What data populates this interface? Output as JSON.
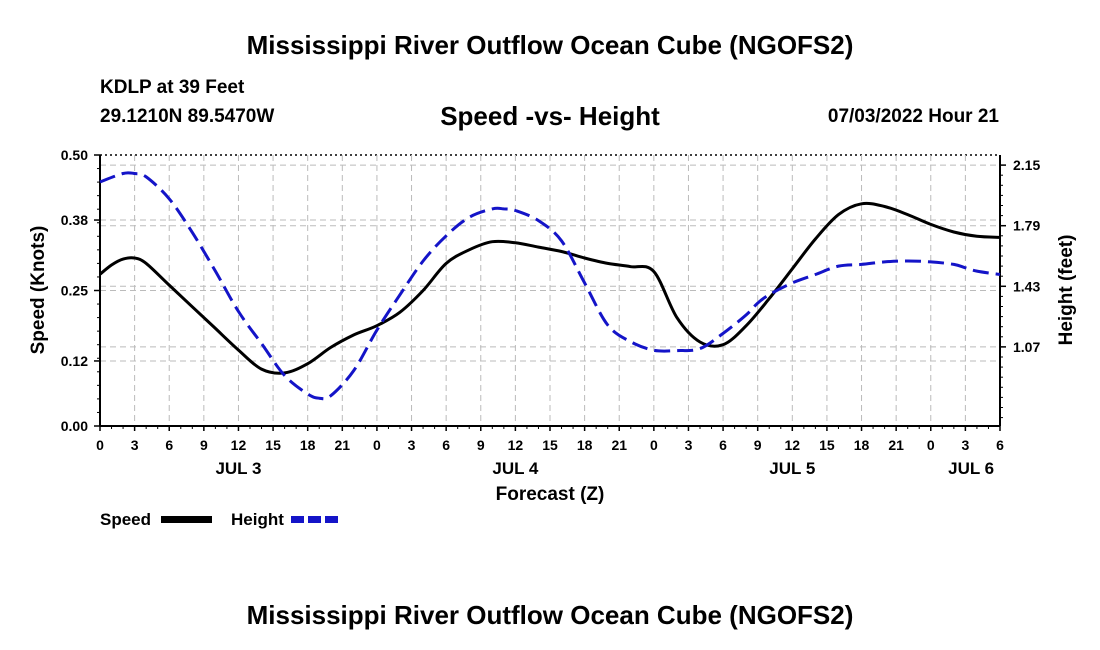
{
  "title": "Mississippi River Outflow Ocean Cube (NGOFS2)",
  "footer_title": "Mississippi River Outflow Ocean Cube (NGOFS2)",
  "station": "KDLP at 39 Feet",
  "coords": "29.1210N  89.5470W",
  "subtitle": "Speed -vs- Height",
  "datetime": "07/03/2022 Hour 21",
  "legend": {
    "speed_label": "Speed",
    "height_label": "Height"
  },
  "colors": {
    "speed": "#000000",
    "height": "#1414c8",
    "grid": "#bbbbbb"
  },
  "chart_data": {
    "type": "line",
    "title": "Speed -vs- Height",
    "xlabel": "Forecast (Z)",
    "ylabel": "Speed (Knots)",
    "y2label": "Height (feet)",
    "x_unit": "hours since 2022-07-03 00Z",
    "xlim": [
      0,
      78
    ],
    "ylim": [
      0,
      0.5
    ],
    "y2lim": [
      0.6,
      2.21
    ],
    "x_tick_positions": [
      0,
      3,
      6,
      9,
      12,
      15,
      18,
      21,
      24,
      27,
      30,
      33,
      36,
      39,
      42,
      45,
      48,
      51,
      54,
      57,
      60,
      63,
      66,
      69,
      72,
      75,
      78
    ],
    "x_tick_labels": [
      "0",
      "3",
      "6",
      "9",
      "12",
      "15",
      "18",
      "21",
      "0",
      "3",
      "6",
      "9",
      "12",
      "15",
      "18",
      "21",
      "0",
      "3",
      "6",
      "9",
      "12",
      "15",
      "18",
      "21",
      "0",
      "3",
      "6"
    ],
    "day_labels": [
      {
        "x": 12,
        "label": "JUL 3"
      },
      {
        "x": 36,
        "label": "JUL 4"
      },
      {
        "x": 60,
        "label": "JUL 5"
      },
      {
        "x": 75.5,
        "label": "JUL 6"
      }
    ],
    "y_ticks": [
      0.0,
      0.12,
      0.25,
      0.38,
      0.5
    ],
    "y_tick_labels": [
      "0.00",
      "0.12",
      "0.25",
      "0.38",
      "0.50"
    ],
    "y2_ticks": [
      1.07,
      1.43,
      1.79,
      2.15
    ],
    "y2_tick_labels": [
      "1.07",
      "1.43",
      "1.79",
      "2.15"
    ],
    "grid": true,
    "series": [
      {
        "name": "Speed",
        "axis": "left",
        "style": "solid",
        "x": [
          0,
          1,
          2,
          3,
          4,
          6,
          8,
          10,
          12,
          14,
          16,
          18,
          20,
          22,
          24,
          26,
          28,
          30,
          32,
          34,
          36,
          38,
          40,
          42,
          44,
          46,
          48,
          50,
          52,
          54,
          56,
          58,
          60,
          62,
          64,
          66,
          68,
          70,
          72,
          74,
          76,
          78
        ],
        "y": [
          0.28,
          0.297,
          0.308,
          0.31,
          0.3,
          0.26,
          0.22,
          0.18,
          0.14,
          0.105,
          0.098,
          0.115,
          0.145,
          0.168,
          0.185,
          0.21,
          0.25,
          0.3,
          0.325,
          0.34,
          0.338,
          0.33,
          0.322,
          0.31,
          0.3,
          0.294,
          0.285,
          0.2,
          0.155,
          0.15,
          0.185,
          0.235,
          0.29,
          0.345,
          0.39,
          0.41,
          0.405,
          0.39,
          0.372,
          0.358,
          0.35,
          0.348
        ]
      },
      {
        "name": "Height",
        "axis": "right",
        "style": "dashed",
        "x": [
          0,
          2,
          3,
          4,
          6,
          8,
          10,
          12,
          14,
          16,
          18,
          19,
          20,
          22,
          24,
          26,
          28,
          30,
          32,
          34,
          35,
          36,
          38,
          40,
          42,
          44,
          46,
          48,
          50,
          52,
          54,
          56,
          57,
          58,
          60,
          62,
          64,
          66,
          68,
          70,
          72,
          74,
          75,
          76,
          78
        ],
        "y": [
          2.05,
          2.1,
          2.1,
          2.08,
          1.95,
          1.75,
          1.52,
          1.28,
          1.09,
          0.9,
          0.79,
          0.765,
          0.78,
          0.93,
          1.17,
          1.38,
          1.58,
          1.73,
          1.84,
          1.89,
          1.89,
          1.88,
          1.82,
          1.7,
          1.45,
          1.2,
          1.1,
          1.05,
          1.048,
          1.06,
          1.15,
          1.26,
          1.33,
          1.38,
          1.45,
          1.5,
          1.55,
          1.56,
          1.575,
          1.58,
          1.575,
          1.56,
          1.54,
          1.52,
          1.5
        ]
      }
    ]
  }
}
